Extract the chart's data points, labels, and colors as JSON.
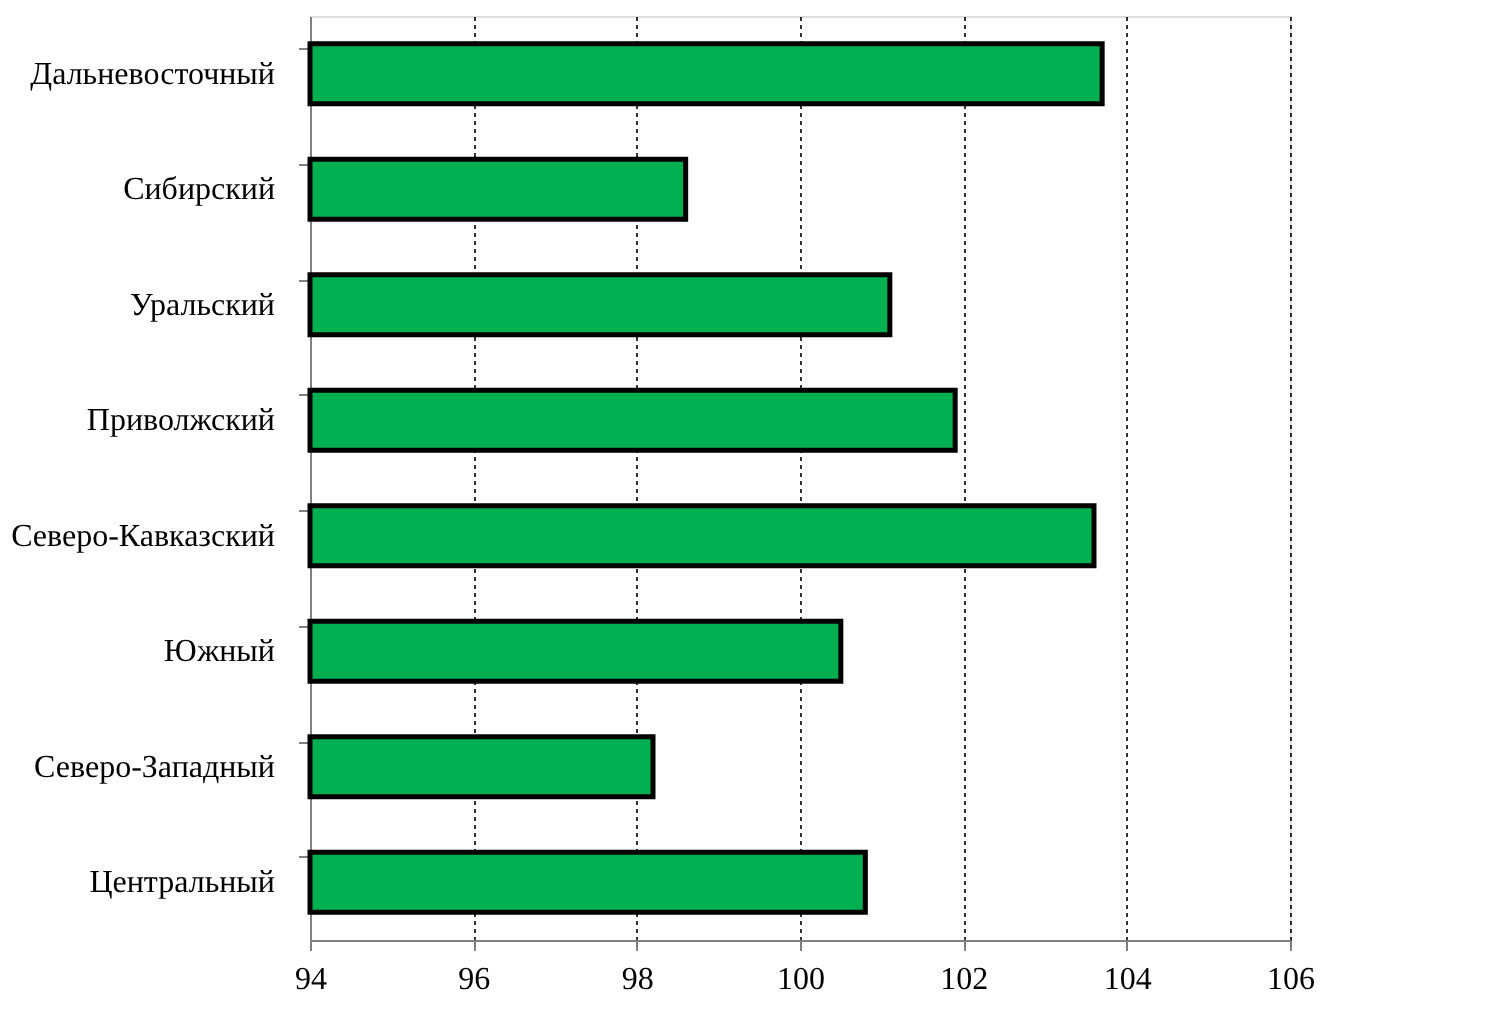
{
  "chart_data": {
    "type": "bar",
    "orientation": "horizontal",
    "categories": [
      "Дальневосточный",
      "Сибирский",
      "Уральский",
      "Приволжский",
      "Северо-Кавказский",
      "Южный",
      "Северо-Западный",
      "Центральный"
    ],
    "values": [
      103.7,
      98.6,
      101.1,
      101.9,
      103.6,
      100.5,
      98.2,
      100.8
    ],
    "color": "#00b050",
    "xlim": [
      94,
      106
    ],
    "xticks": [
      94,
      96,
      98,
      100,
      102,
      104,
      106
    ],
    "grid": "x"
  }
}
